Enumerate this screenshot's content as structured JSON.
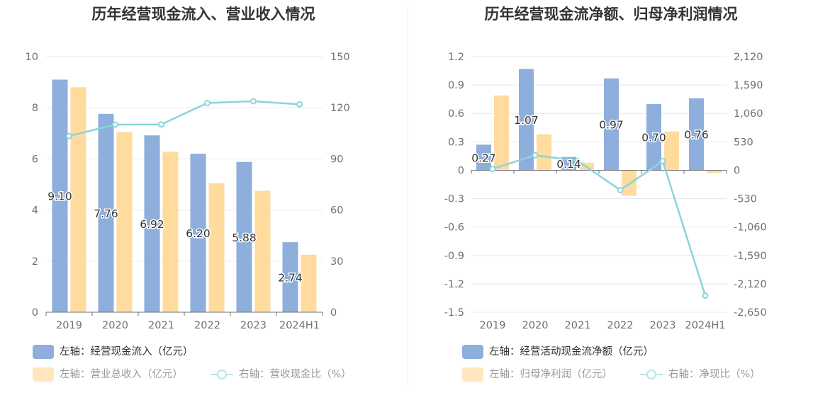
{
  "chart_data": [
    {
      "type": "bar",
      "title": "历年经营现金流入、营业收入情况",
      "categories": [
        "2019",
        "2020",
        "2021",
        "2022",
        "2023",
        "2024H1"
      ],
      "left_axis": {
        "ticks": [
          "0",
          "2",
          "4",
          "6",
          "8",
          "10"
        ],
        "ylim": [
          0,
          10
        ]
      },
      "right_axis": {
        "ticks": [
          "0",
          "30",
          "60",
          "90",
          "120",
          "150"
        ],
        "ylim": [
          0,
          150
        ]
      },
      "series": [
        {
          "name": "左轴：经营现金流入（亿元）",
          "type": "bar",
          "axis": "left",
          "color": "#8eaedb",
          "values": [
            9.1,
            7.76,
            6.92,
            6.2,
            5.88,
            2.74
          ],
          "labels": [
            "9.10",
            "7.76",
            "6.92",
            "6.20",
            "5.88",
            "2.74"
          ]
        },
        {
          "name": "左轴：营业总收入（亿元）",
          "type": "bar",
          "axis": "left",
          "color": "#ffdb9e",
          "values": [
            8.8,
            7.05,
            6.28,
            5.05,
            4.75,
            2.25
          ]
        },
        {
          "name": "右轴：营收现金比（%）",
          "type": "line",
          "axis": "right",
          "color": "#89d5dc",
          "values": [
            103.4,
            110.1,
            110.2,
            122.8,
            123.8,
            122.0
          ]
        }
      ]
    },
    {
      "type": "bar",
      "title": "历年经营现金流净额、归母净利润情况",
      "categories": [
        "2019",
        "2020",
        "2021",
        "2022",
        "2023",
        "2024H1"
      ],
      "left_axis": {
        "ticks": [
          "-1.5",
          "-1.2",
          "-0.9",
          "-0.6",
          "-0.3",
          "0",
          "0.3",
          "0.6",
          "0.9",
          "1.2"
        ],
        "ylim": [
          -1.5,
          1.2
        ]
      },
      "right_axis": {
        "ticks": [
          "-2,650",
          "-2,120",
          "-1,590",
          "-1,060",
          "-530",
          "0",
          "530",
          "1,060",
          "1,590",
          "2,120"
        ],
        "ylim": [
          -2650,
          2120
        ]
      },
      "series": [
        {
          "name": "左轴：经营活动现金流净额（亿元）",
          "type": "bar",
          "axis": "left",
          "color": "#8eaedb",
          "values": [
            0.27,
            1.07,
            0.14,
            0.97,
            0.7,
            0.76
          ],
          "labels": [
            "0.27",
            "1.07",
            "0.14",
            "0.97",
            "0.70",
            "0.76"
          ]
        },
        {
          "name": "左轴：归母净利润（亿元）",
          "type": "bar",
          "axis": "left",
          "color": "#ffdb9e",
          "values": [
            0.79,
            0.38,
            0.08,
            -0.27,
            0.41,
            -0.03
          ]
        },
        {
          "name": "右轴：净现比（%）",
          "type": "line",
          "axis": "right",
          "color": "#89d5dc",
          "values": [
            25,
            280,
            175,
            -370,
            170,
            -2340
          ]
        }
      ]
    }
  ]
}
